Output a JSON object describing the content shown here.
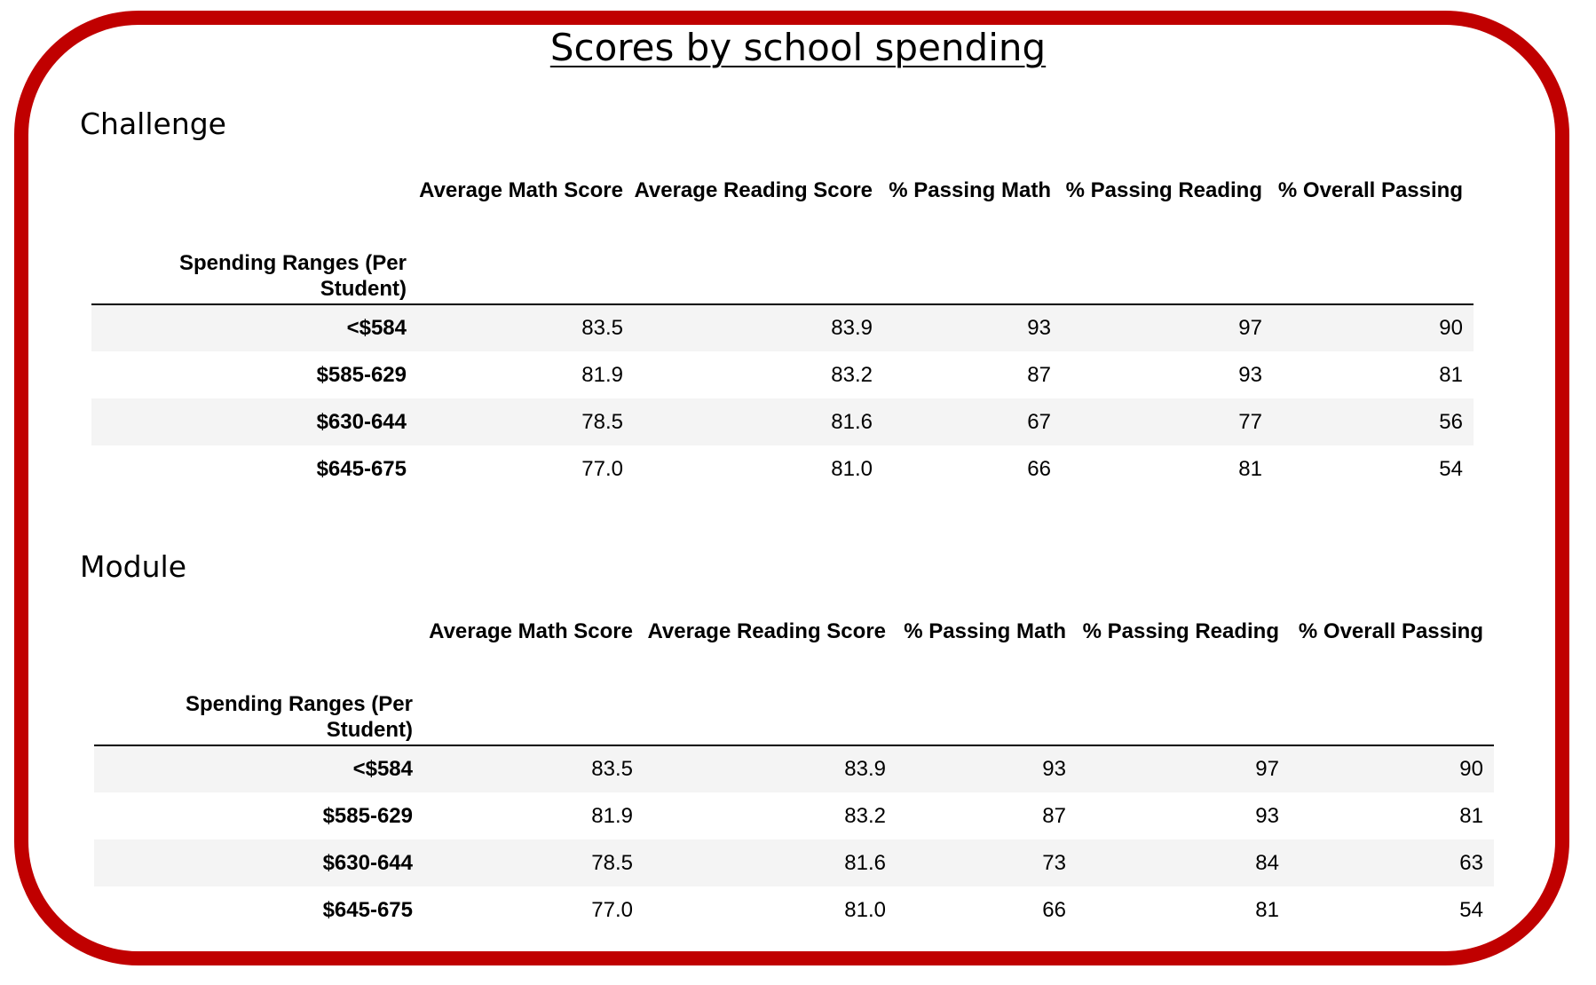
{
  "title": "Scores by school spending",
  "sections": [
    {
      "label": "Challenge",
      "index_header": "Spending Ranges (Per Student)",
      "columns": [
        "Average Math Score",
        "Average Reading Score",
        "% Passing Math",
        "% Passing Reading",
        "% Overall Passing"
      ],
      "rows": [
        {
          "range": "<$584",
          "values": [
            "83.5",
            "83.9",
            "93",
            "97",
            "90"
          ]
        },
        {
          "range": "$585-629",
          "values": [
            "81.9",
            "83.2",
            "87",
            "93",
            "81"
          ]
        },
        {
          "range": "$630-644",
          "values": [
            "78.5",
            "81.6",
            "67",
            "77",
            "56"
          ]
        },
        {
          "range": "$645-675",
          "values": [
            "77.0",
            "81.0",
            "66",
            "81",
            "54"
          ]
        }
      ]
    },
    {
      "label": "Module",
      "index_header": "Spending Ranges (Per Student)",
      "columns": [
        "Average Math Score",
        "Average Reading Score",
        "% Passing Math",
        "% Passing Reading",
        "% Overall Passing"
      ],
      "rows": [
        {
          "range": "<$584",
          "values": [
            "83.5",
            "83.9",
            "93",
            "97",
            "90"
          ]
        },
        {
          "range": "$585-629",
          "values": [
            "81.9",
            "83.2",
            "87",
            "93",
            "81"
          ]
        },
        {
          "range": "$630-644",
          "values": [
            "78.5",
            "81.6",
            "73",
            "84",
            "63"
          ]
        },
        {
          "range": "$645-675",
          "values": [
            "77.0",
            "81.0",
            "66",
            "81",
            "54"
          ]
        }
      ]
    }
  ]
}
